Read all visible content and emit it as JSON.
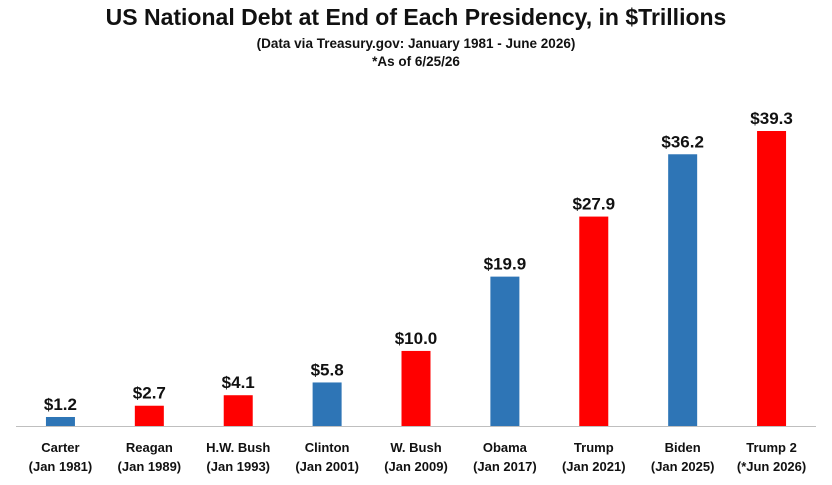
{
  "chart_data": {
    "type": "bar",
    "title": "US National Debt at End of Each Presidency, in $Trillions",
    "subtitle": "(Data via Treasury.gov: January 1981 - June 2026)",
    "note": "*As of 6/25/26",
    "categories": [
      {
        "name": "Carter",
        "date": "(Jan 1981)"
      },
      {
        "name": "Reagan",
        "date": "(Jan 1989)"
      },
      {
        "name": "H.W. Bush",
        "date": "(Jan 1993)"
      },
      {
        "name": "Clinton",
        "date": "(Jan 2001)"
      },
      {
        "name": "W. Bush",
        "date": "(Jan 2009)"
      },
      {
        "name": "Obama",
        "date": "(Jan 2017)"
      },
      {
        "name": "Trump",
        "date": "(Jan 2021)"
      },
      {
        "name": "Biden",
        "date": "(Jan 2025)"
      },
      {
        "name": "Trump 2",
        "date": "(*Jun 2026)"
      }
    ],
    "values": [
      1.2,
      2.7,
      4.1,
      5.8,
      10.0,
      19.9,
      27.9,
      36.2,
      39.3
    ],
    "value_labels": [
      "$1.2",
      "$2.7",
      "$4.1",
      "$5.8",
      "$10.0",
      "$19.9",
      "$27.9",
      "$36.2",
      "$39.3"
    ],
    "parties": [
      "D",
      "R",
      "R",
      "D",
      "R",
      "D",
      "R",
      "D",
      "R"
    ],
    "colors": {
      "D": "#2e75b6",
      "R": "#ff0000"
    },
    "ylim": [
      0,
      40
    ],
    "grid": false,
    "legend": "none"
  }
}
